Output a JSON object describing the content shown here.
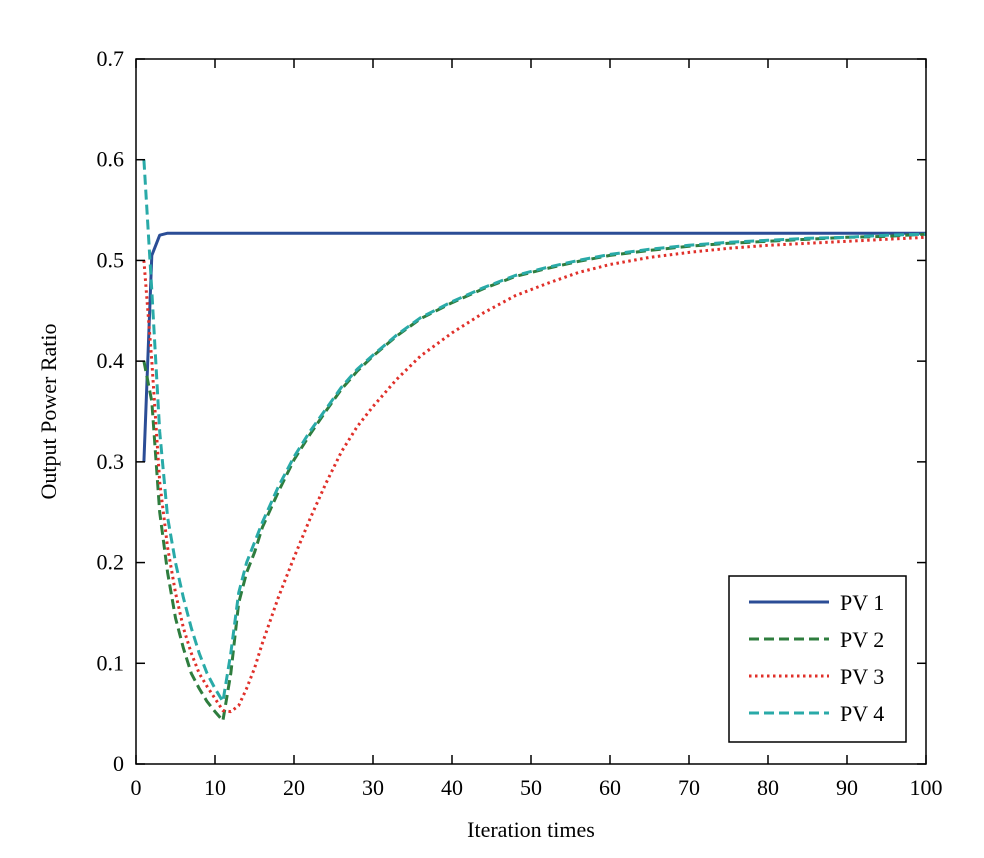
{
  "chart_data": {
    "type": "line",
    "xlabel": "Iteration times",
    "ylabel": "Output Power Ratio",
    "xlim": [
      0,
      100
    ],
    "ylim": [
      0,
      0.7
    ],
    "xticks": [
      "0",
      "10",
      "20",
      "30",
      "40",
      "50",
      "60",
      "70",
      "80",
      "90",
      "100"
    ],
    "yticks": [
      "0",
      "0.1",
      "0.2",
      "0.3",
      "0.4",
      "0.5",
      "0.6",
      "0.7"
    ],
    "grid": false,
    "legend_position": "bottom-right",
    "series": [
      {
        "name": "PV 1",
        "color": "#2b4d96",
        "style": "solid",
        "x": [
          1,
          2,
          3,
          4,
          5,
          10,
          20,
          40,
          60,
          80,
          100
        ],
        "y": [
          0.3,
          0.505,
          0.525,
          0.527,
          0.527,
          0.527,
          0.527,
          0.527,
          0.527,
          0.527,
          0.527
        ]
      },
      {
        "name": "PV 2",
        "color": "#2e7d3e",
        "style": "dashed",
        "x": [
          1,
          2,
          3,
          4,
          5,
          6,
          7,
          8,
          9,
          10,
          11,
          12,
          13,
          14,
          15,
          16,
          18,
          20,
          22,
          24,
          26,
          28,
          30,
          33,
          36,
          40,
          44,
          48,
          52,
          56,
          60,
          65,
          70,
          75,
          80,
          85,
          90,
          95,
          100
        ],
        "y": [
          0.4,
          0.36,
          0.25,
          0.19,
          0.145,
          0.115,
          0.09,
          0.075,
          0.062,
          0.052,
          0.043,
          0.09,
          0.16,
          0.19,
          0.21,
          0.235,
          0.27,
          0.302,
          0.327,
          0.35,
          0.372,
          0.39,
          0.405,
          0.425,
          0.442,
          0.458,
          0.472,
          0.484,
          0.492,
          0.499,
          0.505,
          0.51,
          0.514,
          0.517,
          0.519,
          0.521,
          0.523,
          0.524,
          0.526
        ]
      },
      {
        "name": "PV 3",
        "color": "#e0302a",
        "style": "dotted",
        "x": [
          1,
          2,
          3,
          4,
          5,
          6,
          7,
          8,
          9,
          10,
          11,
          12,
          13,
          14,
          15,
          16,
          18,
          20,
          22,
          24,
          26,
          28,
          30,
          33,
          36,
          40,
          44,
          48,
          52,
          56,
          60,
          65,
          70,
          75,
          80,
          85,
          90,
          95,
          100
        ],
        "y": [
          0.5,
          0.4,
          0.28,
          0.215,
          0.17,
          0.135,
          0.11,
          0.09,
          0.077,
          0.065,
          0.053,
          0.052,
          0.058,
          0.075,
          0.095,
          0.12,
          0.165,
          0.205,
          0.243,
          0.278,
          0.31,
          0.335,
          0.355,
          0.382,
          0.405,
          0.428,
          0.448,
          0.465,
          0.477,
          0.488,
          0.496,
          0.503,
          0.508,
          0.512,
          0.515,
          0.517,
          0.519,
          0.521,
          0.523
        ]
      },
      {
        "name": "PV 4",
        "color": "#29aaa8",
        "style": "dashed",
        "x": [
          1,
          2,
          3,
          4,
          5,
          6,
          7,
          8,
          9,
          10,
          11,
          12,
          13,
          14,
          15,
          16,
          18,
          20,
          22,
          24,
          26,
          28,
          30,
          33,
          36,
          40,
          44,
          48,
          52,
          56,
          60,
          65,
          70,
          75,
          80,
          85,
          90,
          95,
          100
        ],
        "y": [
          0.6,
          0.47,
          0.33,
          0.245,
          0.2,
          0.165,
          0.135,
          0.11,
          0.09,
          0.075,
          0.062,
          0.11,
          0.17,
          0.2,
          0.22,
          0.24,
          0.275,
          0.305,
          0.33,
          0.352,
          0.374,
          0.392,
          0.406,
          0.426,
          0.443,
          0.459,
          0.473,
          0.485,
          0.493,
          0.5,
          0.506,
          0.511,
          0.515,
          0.518,
          0.52,
          0.522,
          0.523,
          0.525,
          0.526
        ]
      }
    ]
  }
}
